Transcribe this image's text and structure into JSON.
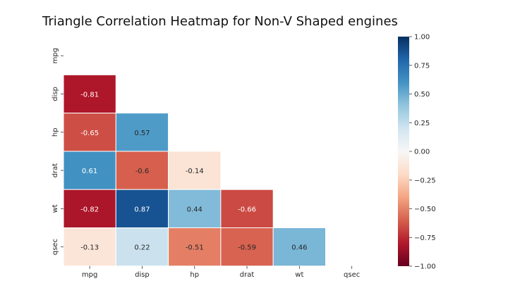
{
  "chart_data": {
    "type": "heatmap",
    "title": "Triangle Correlation Heatmap for Non-V Shaped engines",
    "variables": [
      "mpg",
      "disp",
      "hp",
      "drat",
      "wt",
      "qsec"
    ],
    "mask": "upper-triangle-including-diagonal",
    "matrix": [
      [
        null,
        null,
        null,
        null,
        null,
        null
      ],
      [
        -0.81,
        null,
        null,
        null,
        null,
        null
      ],
      [
        -0.65,
        0.57,
        null,
        null,
        null,
        null
      ],
      [
        0.61,
        -0.6,
        -0.14,
        null,
        null,
        null
      ],
      [
        -0.82,
        0.87,
        0.44,
        -0.66,
        null,
        null
      ],
      [
        -0.13,
        0.22,
        -0.51,
        -0.59,
        0.46,
        null
      ]
    ],
    "colormap": "RdBu",
    "vmin": -1,
    "vmax": 1,
    "colorbar_ticks": [
      "1.00",
      "0.75",
      "0.50",
      "0.25",
      "0.00",
      "−0.25",
      "−0.50",
      "−0.75",
      "−1.00"
    ],
    "annotations": true
  }
}
